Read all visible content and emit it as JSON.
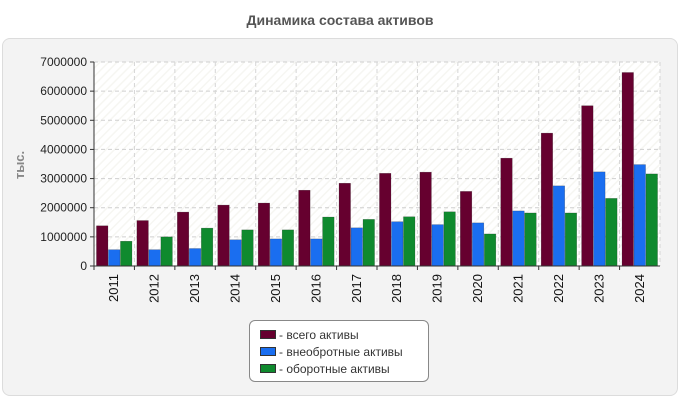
{
  "chart_data": {
    "type": "bar",
    "title": "Динамика состава активов",
    "xlabel": "",
    "ylabel": "тыс.",
    "ylim": [
      0,
      7000000
    ],
    "yticks": [
      "0",
      "1000000",
      "2000000",
      "3000000",
      "4000000",
      "5000000",
      "6000000",
      "7000000"
    ],
    "grid": true,
    "legend_position": "bottom-center",
    "categories": [
      "2011",
      "2012",
      "2013",
      "2014",
      "2015",
      "2016",
      "2017",
      "2018",
      "2019",
      "2020",
      "2021",
      "2022",
      "2023",
      "2024"
    ],
    "series": [
      {
        "name": "- всего активы",
        "color": "#66002f",
        "values": [
          1380000,
          1560000,
          1850000,
          2090000,
          2160000,
          2600000,
          2840000,
          3180000,
          3220000,
          2560000,
          3700000,
          4560000,
          5500000,
          6640000
        ]
      },
      {
        "name": "- внеобротные активы",
        "color": "#1a6ef0",
        "values": [
          560000,
          560000,
          600000,
          900000,
          930000,
          930000,
          1310000,
          1520000,
          1420000,
          1480000,
          1890000,
          2750000,
          3230000,
          3480000
        ]
      },
      {
        "name": "- оборотные активы",
        "color": "#0f8a2e",
        "values": [
          850000,
          1000000,
          1300000,
          1240000,
          1240000,
          1680000,
          1600000,
          1690000,
          1860000,
          1100000,
          1820000,
          1820000,
          2320000,
          3160000
        ]
      }
    ]
  }
}
